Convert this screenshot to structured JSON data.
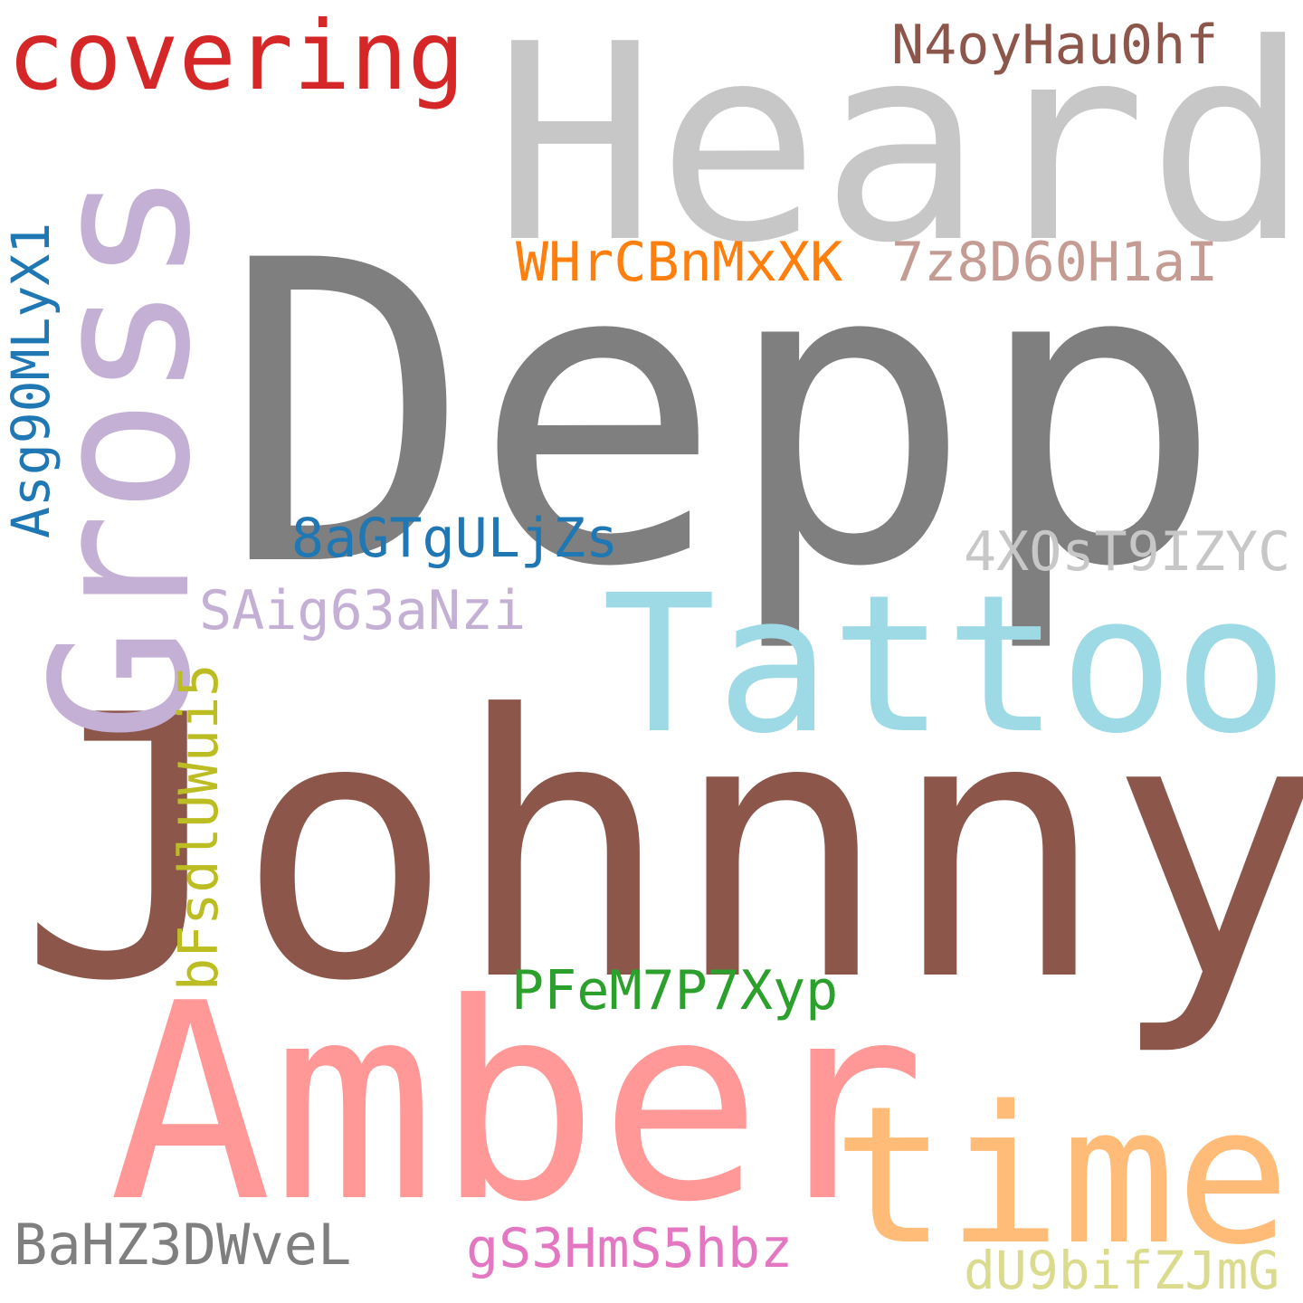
{
  "words": [
    {
      "text": "Johnny",
      "color": "#8c564b"
    },
    {
      "text": "Depp",
      "color": "#7f7f7f"
    },
    {
      "text": "Heard",
      "color": "#c7c7c7"
    },
    {
      "text": "Amber",
      "color": "#ff9896"
    },
    {
      "text": "Tattoo",
      "color": "#9edae5"
    },
    {
      "text": "Gross",
      "color": "#c5b0d5"
    },
    {
      "text": "time",
      "color": "#ffbb78"
    },
    {
      "text": "covering",
      "color": "#d62728"
    },
    {
      "text": "N4oyHau0hf",
      "color": "#8c564b"
    },
    {
      "text": "WHrCBnMxXK",
      "color": "#ff7f0e"
    },
    {
      "text": "7z8D60H1aI",
      "color": "#c49c94"
    },
    {
      "text": "Asg90MLyX1",
      "color": "#1f77b4"
    },
    {
      "text": "8aGTgULjZs",
      "color": "#1f77b4"
    },
    {
      "text": "4XOsT9IZYC",
      "color": "#c7c7c7"
    },
    {
      "text": "SAig63aNzi",
      "color": "#c5b0d5"
    },
    {
      "text": "bFsdlUWui5",
      "color": "#bcbd22"
    },
    {
      "text": "PFeM7P7Xyp",
      "color": "#2ca02c"
    },
    {
      "text": "BaHZ3DWveL",
      "color": "#7f7f7f"
    },
    {
      "text": "gS3HmS5hbz",
      "color": "#e377c2"
    },
    {
      "text": "dU9bifZJmG",
      "color": "#dbdb8d"
    }
  ]
}
